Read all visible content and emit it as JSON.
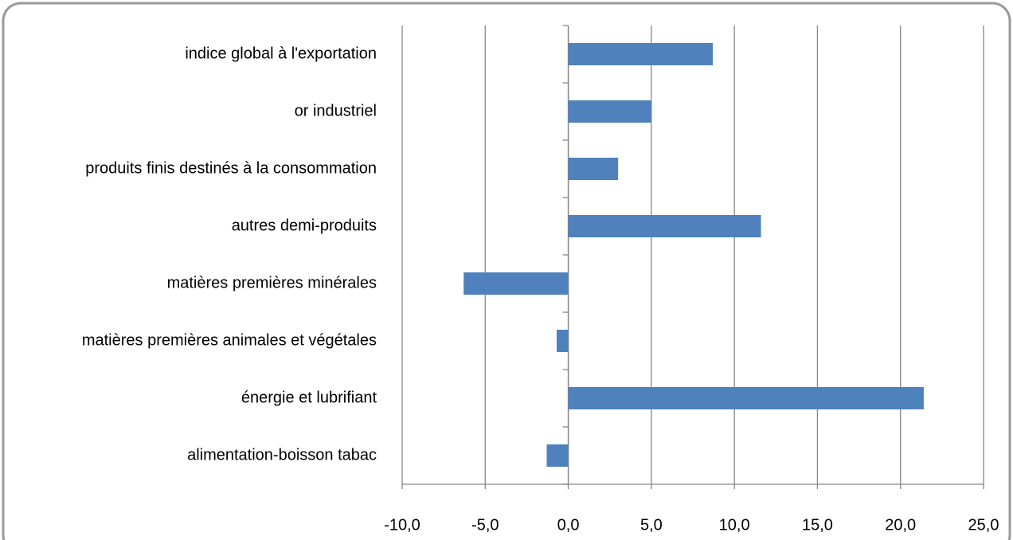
{
  "chart_data": {
    "type": "bar",
    "orientation": "horizontal",
    "categories": [
      "indice global à l'exportation",
      "or industriel",
      "produits finis destinés à la consommation",
      "autres demi-produits",
      "matières premières minérales",
      "matières premières animales et végétales",
      "énergie et lubrifiant",
      "alimentation-boisson tabac"
    ],
    "values": [
      8.7,
      5.0,
      3.0,
      11.6,
      -6.3,
      -0.7,
      21.4,
      -1.3
    ],
    "color": "#4f81bd",
    "xlim": [
      -10,
      25
    ],
    "xticks": [
      {
        "value": -10,
        "label": "-10,0"
      },
      {
        "value": -5,
        "label": "-5,0"
      },
      {
        "value": 0,
        "label": "0,0"
      },
      {
        "value": 5,
        "label": "5,0"
      },
      {
        "value": 10,
        "label": "10,0"
      },
      {
        "value": 15,
        "label": "15,0"
      },
      {
        "value": 20,
        "label": "20,0"
      },
      {
        "value": 25,
        "label": "25,0"
      }
    ],
    "grid": true
  }
}
